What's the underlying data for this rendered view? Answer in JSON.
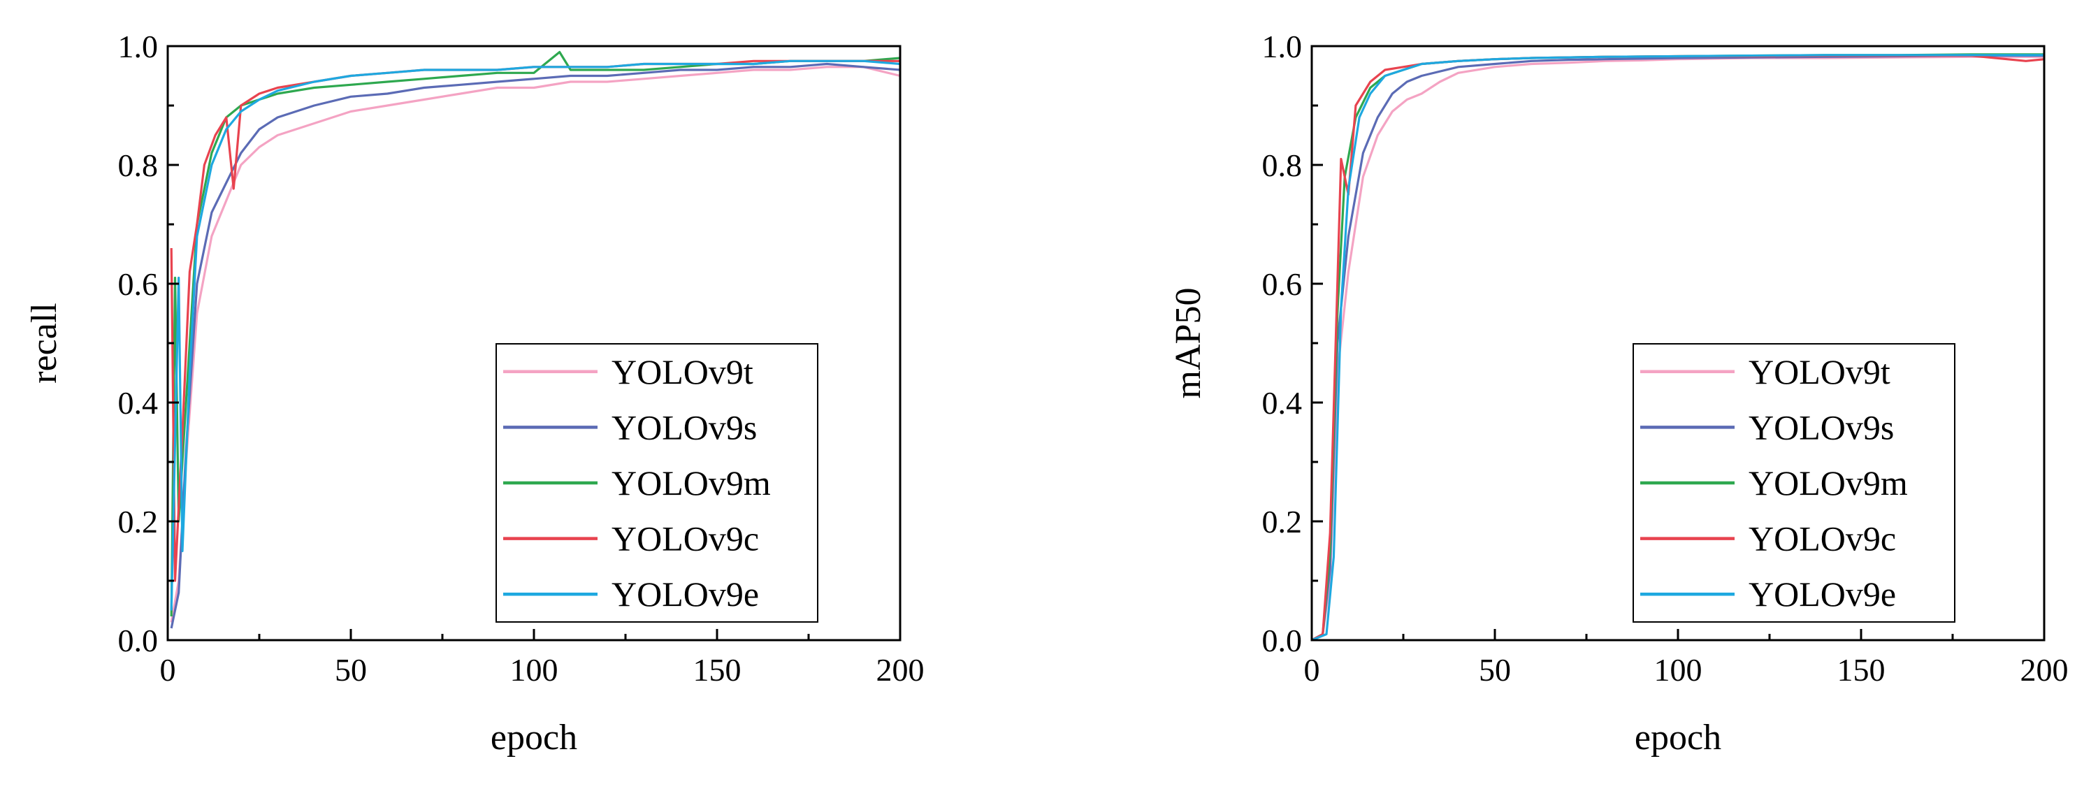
{
  "chart_data": [
    {
      "type": "line",
      "xlabel": "epoch",
      "ylabel": "recall",
      "xlim": [
        0,
        200
      ],
      "ylim": [
        0,
        1.0
      ],
      "x_ticks": [
        "0",
        "50",
        "100",
        "150",
        "200"
      ],
      "y_ticks": [
        "0.0",
        "0.2",
        "0.4",
        "0.6",
        "0.8",
        "1.0"
      ],
      "legend_position": "bottom-right",
      "series": [
        {
          "name": "YOLOv9t",
          "color": "#f4a3c3",
          "points": [
            [
              1,
              0.03
            ],
            [
              3,
              0.1
            ],
            [
              5,
              0.3
            ],
            [
              8,
              0.55
            ],
            [
              12,
              0.68
            ],
            [
              16,
              0.74
            ],
            [
              20,
              0.8
            ],
            [
              25,
              0.83
            ],
            [
              30,
              0.85
            ],
            [
              40,
              0.87
            ],
            [
              50,
              0.89
            ],
            [
              60,
              0.9
            ],
            [
              70,
              0.91
            ],
            [
              80,
              0.92
            ],
            [
              90,
              0.93
            ],
            [
              100,
              0.93
            ],
            [
              110,
              0.94
            ],
            [
              120,
              0.94
            ],
            [
              130,
              0.945
            ],
            [
              140,
              0.95
            ],
            [
              150,
              0.955
            ],
            [
              160,
              0.96
            ],
            [
              170,
              0.96
            ],
            [
              180,
              0.965
            ],
            [
              190,
              0.965
            ],
            [
              200,
              0.95
            ]
          ]
        },
        {
          "name": "YOLOv9s",
          "color": "#5b6bb5",
          "points": [
            [
              1,
              0.02
            ],
            [
              3,
              0.08
            ],
            [
              5,
              0.32
            ],
            [
              8,
              0.6
            ],
            [
              12,
              0.72
            ],
            [
              16,
              0.77
            ],
            [
              20,
              0.82
            ],
            [
              25,
              0.86
            ],
            [
              30,
              0.88
            ],
            [
              40,
              0.9
            ],
            [
              50,
              0.915
            ],
            [
              60,
              0.92
            ],
            [
              70,
              0.93
            ],
            [
              80,
              0.935
            ],
            [
              90,
              0.94
            ],
            [
              100,
              0.945
            ],
            [
              110,
              0.95
            ],
            [
              120,
              0.95
            ],
            [
              130,
              0.955
            ],
            [
              140,
              0.96
            ],
            [
              150,
              0.96
            ],
            [
              160,
              0.965
            ],
            [
              170,
              0.965
            ],
            [
              180,
              0.97
            ],
            [
              190,
              0.965
            ],
            [
              200,
              0.96
            ]
          ]
        },
        {
          "name": "YOLOv9m",
          "color": "#2ea84f",
          "points": [
            [
              1,
              0.04
            ],
            [
              2,
              0.61
            ],
            [
              3,
              0.2
            ],
            [
              5,
              0.4
            ],
            [
              8,
              0.7
            ],
            [
              12,
              0.82
            ],
            [
              16,
              0.88
            ],
            [
              20,
              0.9
            ],
            [
              25,
              0.91
            ],
            [
              30,
              0.92
            ],
            [
              40,
              0.93
            ],
            [
              50,
              0.935
            ],
            [
              60,
              0.94
            ],
            [
              70,
              0.945
            ],
            [
              80,
              0.95
            ],
            [
              90,
              0.955
            ],
            [
              100,
              0.955
            ],
            [
              107,
              0.99
            ],
            [
              110,
              0.96
            ],
            [
              120,
              0.96
            ],
            [
              130,
              0.96
            ],
            [
              140,
              0.965
            ],
            [
              150,
              0.97
            ],
            [
              160,
              0.97
            ],
            [
              170,
              0.975
            ],
            [
              180,
              0.975
            ],
            [
              190,
              0.975
            ],
            [
              200,
              0.98
            ]
          ]
        },
        {
          "name": "YOLOv9c",
          "color": "#e8434f",
          "points": [
            [
              1,
              0.66
            ],
            [
              2,
              0.1
            ],
            [
              4,
              0.35
            ],
            [
              6,
              0.62
            ],
            [
              8,
              0.7
            ],
            [
              10,
              0.8
            ],
            [
              13,
              0.85
            ],
            [
              16,
              0.88
            ],
            [
              18,
              0.76
            ],
            [
              20,
              0.9
            ],
            [
              25,
              0.92
            ],
            [
              30,
              0.93
            ],
            [
              40,
              0.94
            ],
            [
              50,
              0.95
            ],
            [
              60,
              0.955
            ],
            [
              70,
              0.96
            ],
            [
              80,
              0.96
            ],
            [
              90,
              0.96
            ],
            [
              100,
              0.965
            ],
            [
              110,
              0.965
            ],
            [
              120,
              0.965
            ],
            [
              130,
              0.97
            ],
            [
              140,
              0.97
            ],
            [
              150,
              0.97
            ],
            [
              160,
              0.975
            ],
            [
              170,
              0.975
            ],
            [
              180,
              0.975
            ],
            [
              190,
              0.975
            ],
            [
              200,
              0.975
            ]
          ]
        },
        {
          "name": "YOLOv9e",
          "color": "#1ea8e0",
          "points": [
            [
              1,
              0.05
            ],
            [
              3,
              0.61
            ],
            [
              4,
              0.15
            ],
            [
              6,
              0.45
            ],
            [
              8,
              0.68
            ],
            [
              12,
              0.8
            ],
            [
              16,
              0.86
            ],
            [
              20,
              0.89
            ],
            [
              25,
              0.91
            ],
            [
              30,
              0.925
            ],
            [
              40,
              0.94
            ],
            [
              50,
              0.95
            ],
            [
              60,
              0.955
            ],
            [
              70,
              0.96
            ],
            [
              80,
              0.96
            ],
            [
              90,
              0.96
            ],
            [
              100,
              0.965
            ],
            [
              110,
              0.965
            ],
            [
              120,
              0.965
            ],
            [
              130,
              0.97
            ],
            [
              140,
              0.97
            ],
            [
              150,
              0.97
            ],
            [
              160,
              0.97
            ],
            [
              170,
              0.975
            ],
            [
              180,
              0.975
            ],
            [
              190,
              0.975
            ],
            [
              200,
              0.97
            ]
          ]
        }
      ]
    },
    {
      "type": "line",
      "xlabel": "epoch",
      "ylabel": "mAP50",
      "xlim": [
        0,
        200
      ],
      "ylim": [
        0,
        1.0
      ],
      "x_ticks": [
        "0",
        "50",
        "100",
        "150",
        "200"
      ],
      "y_ticks": [
        "0.0",
        "0.2",
        "0.4",
        "0.6",
        "0.8",
        "1.0"
      ],
      "legend_position": "bottom-right",
      "series": [
        {
          "name": "YOLOv9t",
          "color": "#f4a3c3",
          "points": [
            [
              0,
              0.0
            ],
            [
              3,
              0.01
            ],
            [
              5,
              0.1
            ],
            [
              7,
              0.45
            ],
            [
              10,
              0.62
            ],
            [
              14,
              0.78
            ],
            [
              18,
              0.85
            ],
            [
              22,
              0.89
            ],
            [
              26,
              0.91
            ],
            [
              30,
              0.92
            ],
            [
              35,
              0.94
            ],
            [
              40,
              0.955
            ],
            [
              50,
              0.965
            ],
            [
              60,
              0.97
            ],
            [
              70,
              0.972
            ],
            [
              80,
              0.975
            ],
            [
              90,
              0.976
            ],
            [
              100,
              0.978
            ],
            [
              120,
              0.98
            ],
            [
              140,
              0.98
            ],
            [
              160,
              0.981
            ],
            [
              180,
              0.982
            ],
            [
              200,
              0.982
            ]
          ]
        },
        {
          "name": "YOLOv9s",
          "color": "#5b6bb5",
          "points": [
            [
              0,
              0.0
            ],
            [
              3,
              0.01
            ],
            [
              5,
              0.12
            ],
            [
              7,
              0.5
            ],
            [
              10,
              0.68
            ],
            [
              12,
              0.75
            ],
            [
              14,
              0.82
            ],
            [
              18,
              0.88
            ],
            [
              22,
              0.92
            ],
            [
              26,
              0.94
            ],
            [
              30,
              0.95
            ],
            [
              40,
              0.965
            ],
            [
              50,
              0.97
            ],
            [
              60,
              0.975
            ],
            [
              70,
              0.977
            ],
            [
              80,
              0.978
            ],
            [
              100,
              0.98
            ],
            [
              120,
              0.981
            ],
            [
              140,
              0.982
            ],
            [
              160,
              0.983
            ],
            [
              180,
              0.984
            ],
            [
              200,
              0.984
            ]
          ]
        },
        {
          "name": "YOLOv9m",
          "color": "#2ea84f",
          "points": [
            [
              0,
              0.0
            ],
            [
              3,
              0.01
            ],
            [
              5,
              0.15
            ],
            [
              7,
              0.55
            ],
            [
              9,
              0.78
            ],
            [
              12,
              0.88
            ],
            [
              16,
              0.93
            ],
            [
              20,
              0.95
            ],
            [
              25,
              0.96
            ],
            [
              30,
              0.97
            ],
            [
              40,
              0.975
            ],
            [
              50,
              0.978
            ],
            [
              60,
              0.98
            ],
            [
              80,
              0.982
            ],
            [
              100,
              0.983
            ],
            [
              120,
              0.984
            ],
            [
              140,
              0.985
            ],
            [
              160,
              0.985
            ],
            [
              180,
              0.986
            ],
            [
              200,
              0.986
            ]
          ]
        },
        {
          "name": "YOLOv9c",
          "color": "#e8434f",
          "points": [
            [
              0,
              0.0
            ],
            [
              3,
              0.01
            ],
            [
              5,
              0.18
            ],
            [
              7,
              0.6
            ],
            [
              8,
              0.81
            ],
            [
              10,
              0.75
            ],
            [
              12,
              0.9
            ],
            [
              16,
              0.94
            ],
            [
              20,
              0.96
            ],
            [
              25,
              0.965
            ],
            [
              30,
              0.97
            ],
            [
              40,
              0.975
            ],
            [
              50,
              0.978
            ],
            [
              60,
              0.98
            ],
            [
              80,
              0.982
            ],
            [
              100,
              0.983
            ],
            [
              120,
              0.983
            ],
            [
              140,
              0.984
            ],
            [
              160,
              0.984
            ],
            [
              180,
              0.984
            ],
            [
              195,
              0.975
            ],
            [
              200,
              0.978
            ]
          ]
        },
        {
          "name": "YOLOv9e",
          "color": "#1ea8e0",
          "points": [
            [
              0,
              0.0
            ],
            [
              4,
              0.01
            ],
            [
              6,
              0.14
            ],
            [
              8,
              0.56
            ],
            [
              10,
              0.76
            ],
            [
              13,
              0.88
            ],
            [
              16,
              0.92
            ],
            [
              20,
              0.95
            ],
            [
              25,
              0.96
            ],
            [
              30,
              0.97
            ],
            [
              40,
              0.975
            ],
            [
              50,
              0.978
            ],
            [
              60,
              0.98
            ],
            [
              80,
              0.982
            ],
            [
              100,
              0.983
            ],
            [
              120,
              0.984
            ],
            [
              140,
              0.985
            ],
            [
              160,
              0.985
            ],
            [
              180,
              0.985
            ],
            [
              200,
              0.985
            ]
          ]
        }
      ]
    }
  ]
}
